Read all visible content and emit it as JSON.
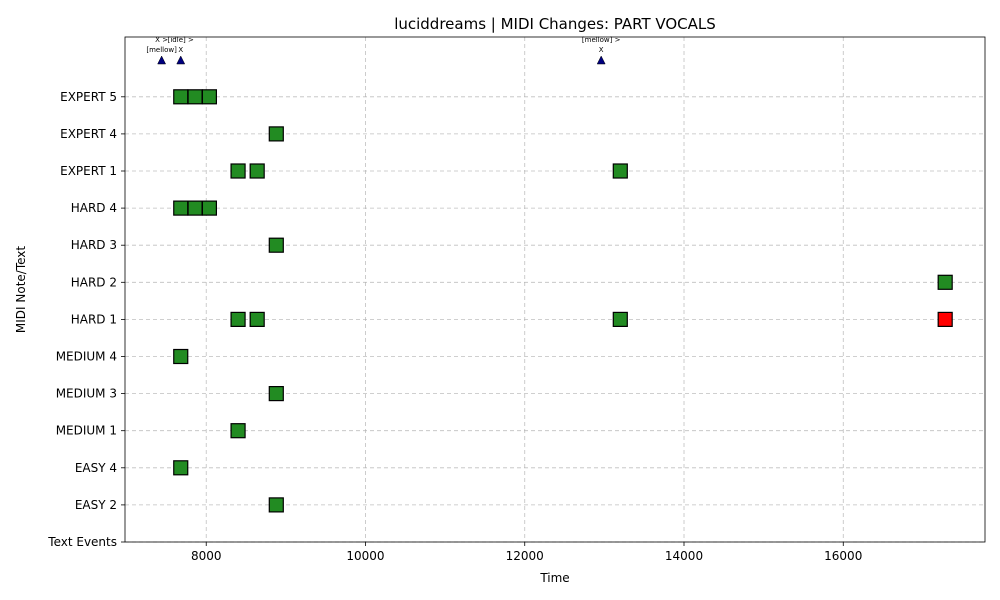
{
  "chart_data": {
    "type": "scatter",
    "title": "luciddreams | MIDI Changes: PART VOCALS",
    "xlabel": "Time",
    "ylabel": "MIDI Note/Text",
    "xlim": [
      6980,
      17780
    ],
    "x_ticks": [
      8000,
      10000,
      12000,
      14000,
      16000
    ],
    "y_categories": [
      "Text Events",
      "EASY 2",
      "EASY 4",
      "MEDIUM 1",
      "MEDIUM 3",
      "MEDIUM 4",
      "HARD 1",
      "HARD 2",
      "HARD 3",
      "HARD 4",
      "EXPERT 1",
      "EXPERT 4",
      "EXPERT 5"
    ],
    "grid": true,
    "colors": {
      "added": "#228B22",
      "removed": "#FF0000",
      "text_marker": "#000080"
    },
    "series": [
      {
        "status": "added",
        "points": [
          {
            "x": 8880,
            "y": "EASY 2"
          },
          {
            "x": 7680,
            "y": "EASY 4"
          },
          {
            "x": 8400,
            "y": "MEDIUM 1"
          },
          {
            "x": 8880,
            "y": "MEDIUM 3"
          },
          {
            "x": 7680,
            "y": "MEDIUM 4"
          },
          {
            "x": 8400,
            "y": "HARD 1"
          },
          {
            "x": 8640,
            "y": "HARD 1"
          },
          {
            "x": 13200,
            "y": "HARD 1"
          },
          {
            "x": 17280,
            "y": "HARD 2"
          },
          {
            "x": 8880,
            "y": "HARD 3"
          },
          {
            "x": 7680,
            "y": "HARD 4"
          },
          {
            "x": 7860,
            "y": "HARD 4"
          },
          {
            "x": 8040,
            "y": "HARD 4"
          },
          {
            "x": 8400,
            "y": "EXPERT 1"
          },
          {
            "x": 8640,
            "y": "EXPERT 1"
          },
          {
            "x": 13200,
            "y": "EXPERT 1"
          },
          {
            "x": 8880,
            "y": "EXPERT 4"
          },
          {
            "x": 7680,
            "y": "EXPERT 5"
          },
          {
            "x": 7860,
            "y": "EXPERT 5"
          },
          {
            "x": 8040,
            "y": "EXPERT 5"
          }
        ]
      },
      {
        "status": "removed",
        "points": [
          {
            "x": 17280,
            "y": "HARD 1"
          }
        ]
      }
    ],
    "text_events": [
      {
        "x": 7440,
        "lines": [
          "X >",
          "[mellow]"
        ]
      },
      {
        "x": 7680,
        "lines": [
          "[idle] >",
          "X"
        ]
      },
      {
        "x": 12960,
        "lines": [
          "[mellow] >",
          "X"
        ]
      }
    ]
  }
}
